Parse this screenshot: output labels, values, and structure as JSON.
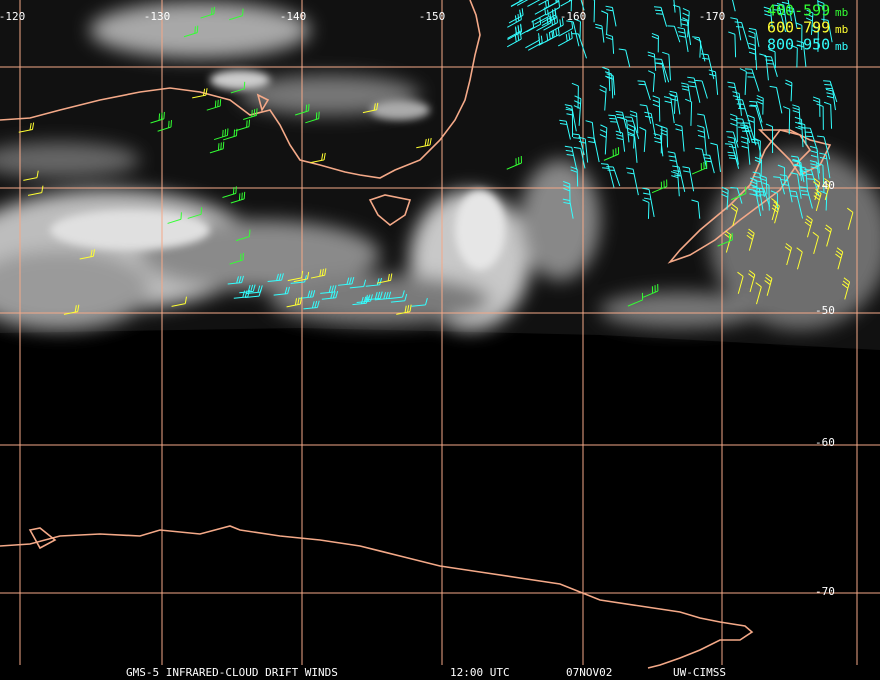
{
  "lon_labels": [
    "-120",
    "-130",
    "-140",
    "-150",
    "-160",
    "-170"
  ],
  "lat_labels": [
    "-40",
    "-50",
    "-60",
    "-70"
  ],
  "legend": [
    {
      "label": "400-599",
      "unit": "mb",
      "color": "#33ff33"
    },
    {
      "label": "600-799",
      "unit": "mb",
      "color": "#ffff33"
    },
    {
      "label": "800-950",
      "unit": "mb",
      "color": "#33ffff"
    }
  ],
  "grid_color": "#f4a988",
  "coast_color": "#f4a988",
  "footer": [
    "GMS-5 INFRARED-CLOUD DRIFT WINDS",
    "12:00 UTC",
    "07NOV02",
    "UW-CIMSS"
  ]
}
